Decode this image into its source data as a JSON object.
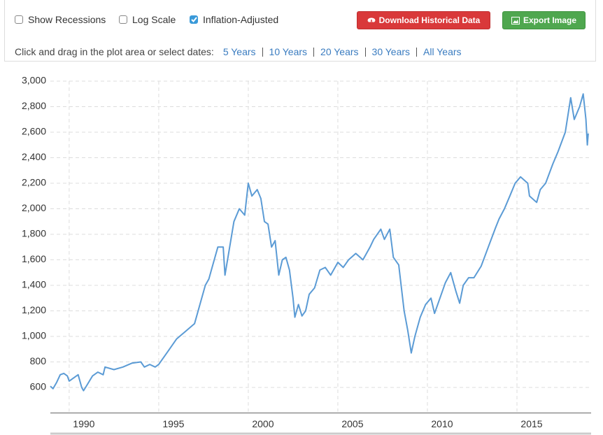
{
  "toolbar": {
    "checkboxes": [
      {
        "label": "Show Recessions",
        "checked": false
      },
      {
        "label": "Log Scale",
        "checked": false
      },
      {
        "label": "Inflation-Adjusted",
        "checked": true
      }
    ],
    "download_button": "Download Historical Data",
    "export_button": "Export Image",
    "date_prompt": "Click and drag in the plot area or select dates:",
    "date_links": [
      "5 Years",
      "10 Years",
      "20 Years",
      "30 Years",
      "All Years"
    ]
  },
  "chart_data": {
    "type": "line",
    "x": [
      1988.95,
      1989.1,
      1989.3,
      1989.5,
      1989.7,
      1989.9,
      1990.0,
      1990.3,
      1990.5,
      1990.7,
      1990.8,
      1991.0,
      1991.3,
      1991.6,
      1991.9,
      1992.0,
      1992.5,
      1993.0,
      1993.5,
      1994.0,
      1994.2,
      1994.5,
      1994.8,
      1995.0,
      1995.5,
      1996.0,
      1996.5,
      1997.0,
      1997.3,
      1997.6,
      1997.8,
      1998.0,
      1998.3,
      1998.6,
      1998.7,
      1998.9,
      1999.2,
      1999.5,
      1999.8,
      2000.0,
      2000.2,
      2000.5,
      2000.7,
      2000.9,
      2001.1,
      2001.3,
      2001.5,
      2001.7,
      2001.9,
      2002.1,
      2002.3,
      2002.5,
      2002.6,
      2002.8,
      2003.0,
      2003.2,
      2003.4,
      2003.7,
      2004.0,
      2004.3,
      2004.6,
      2005.0,
      2005.3,
      2005.6,
      2006.0,
      2006.4,
      2006.8,
      2007.0,
      2007.4,
      2007.6,
      2007.9,
      2008.1,
      2008.4,
      2008.7,
      2008.9,
      2009.1,
      2009.3,
      2009.6,
      2009.9,
      2010.2,
      2010.4,
      2010.7,
      2011.0,
      2011.3,
      2011.6,
      2011.8,
      2012.0,
      2012.3,
      2012.6,
      2013.0,
      2013.4,
      2013.8,
      2014.0,
      2014.3,
      2014.6,
      2014.9,
      2015.2,
      2015.6,
      2015.7,
      2016.1,
      2016.3,
      2016.6,
      2017.0,
      2017.3,
      2017.7,
      2018.0,
      2018.2,
      2018.5,
      2018.7,
      2018.85,
      2018.93,
      2018.98
    ],
    "series": [
      {
        "color": "#5b9bd5",
        "values": [
          610,
          590,
          640,
          700,
          710,
          690,
          650,
          680,
          700,
          600,
          575,
          620,
          690,
          720,
          700,
          760,
          740,
          760,
          790,
          800,
          760,
          780,
          760,
          780,
          880,
          980,
          1040,
          1100,
          1250,
          1400,
          1450,
          1550,
          1700,
          1700,
          1480,
          1650,
          1900,
          2000,
          1950,
          2200,
          2100,
          2150,
          2080,
          1900,
          1880,
          1700,
          1750,
          1480,
          1600,
          1620,
          1520,
          1300,
          1150,
          1250,
          1160,
          1200,
          1330,
          1380,
          1520,
          1540,
          1480,
          1580,
          1540,
          1600,
          1650,
          1600,
          1700,
          1760,
          1840,
          1760,
          1840,
          1620,
          1560,
          1200,
          1050,
          870,
          1000,
          1150,
          1250,
          1300,
          1180,
          1300,
          1420,
          1500,
          1350,
          1260,
          1400,
          1460,
          1460,
          1550,
          1700,
          1850,
          1920,
          2000,
          2100,
          2200,
          2250,
          2200,
          2100,
          2050,
          2150,
          2200,
          2350,
          2450,
          2600,
          2870,
          2700,
          2800,
          2900,
          2700,
          2500,
          2590
        ]
      }
    ],
    "xlim": [
      1988.95,
      2019.14
    ],
    "xticks": [
      1990,
      1995,
      2000,
      2005,
      2010,
      2015
    ],
    "ylim": [
      400,
      3000
    ],
    "yticks": [
      {
        "value": 600,
        "label": "600"
      },
      {
        "value": 800,
        "label": "800"
      },
      {
        "value": 1000,
        "label": "1,000"
      },
      {
        "value": 1200,
        "label": "1,200"
      },
      {
        "value": 1400,
        "label": "1,400"
      },
      {
        "value": 1600,
        "label": "1,600"
      },
      {
        "value": 1800,
        "label": "1,800"
      },
      {
        "value": 2000,
        "label": "2,000"
      },
      {
        "value": 2200,
        "label": "2,200"
      },
      {
        "value": 2400,
        "label": "2,400"
      },
      {
        "value": 2600,
        "label": "2,600"
      },
      {
        "value": 2800,
        "label": "2,800"
      },
      {
        "value": 3000,
        "label": "3,000"
      }
    ],
    "grid": true
  }
}
